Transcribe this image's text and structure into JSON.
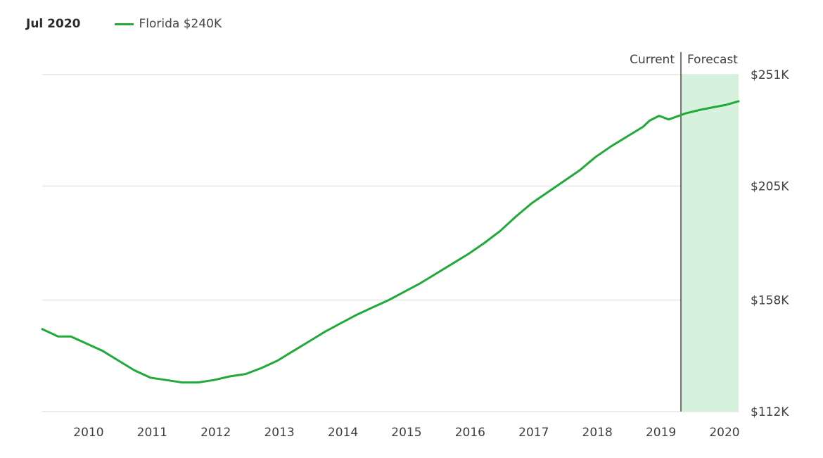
{
  "header": {
    "date_label": "Jul 2020",
    "legend": {
      "label": "Florida $240K",
      "color": "#22a93a"
    }
  },
  "markers": {
    "current_label": "Current",
    "forecast_label": "Forecast",
    "divider_text": "|"
  },
  "colors": {
    "line": "#22a93a",
    "forecast_band": "#d6f2dc",
    "gridline": "#ebebeb",
    "divider": "#4a4a4a"
  },
  "chart_data": {
    "type": "line",
    "title": "",
    "header_date": "Jul 2020",
    "legend": [
      "Florida $240K"
    ],
    "legend_position": "top-left",
    "xlabel": "",
    "ylabel": "",
    "x_ticks": [
      "2010",
      "2011",
      "2012",
      "2013",
      "2014",
      "2015",
      "2016",
      "2017",
      "2018",
      "2019",
      "2020"
    ],
    "y_ticks": [
      "$112K",
      "$158K",
      "$205K",
      "$251K"
    ],
    "y_tick_values": [
      112,
      158,
      205,
      251
    ],
    "ylim": [
      112,
      251
    ],
    "xlim": [
      2009.55,
      2020.5
    ],
    "grid": true,
    "y_axis_position": "right",
    "annotations": [
      {
        "text": "Current",
        "x": 2019.67
      },
      {
        "text": "Forecast",
        "x": 2019.67,
        "note": "shaded region from current to end of chart"
      }
    ],
    "forecast_start": 2019.67,
    "series": [
      {
        "name": "Florida",
        "color": "#22a93a",
        "x": [
          2009.55,
          2009.8,
          2010.0,
          2010.25,
          2010.5,
          2010.75,
          2011.0,
          2011.25,
          2011.5,
          2011.75,
          2012.0,
          2012.25,
          2012.5,
          2012.75,
          2013.0,
          2013.25,
          2013.5,
          2013.75,
          2014.0,
          2014.25,
          2014.5,
          2014.75,
          2015.0,
          2015.25,
          2015.5,
          2015.75,
          2016.0,
          2016.25,
          2016.5,
          2016.75,
          2017.0,
          2017.25,
          2017.5,
          2017.75,
          2018.0,
          2018.25,
          2018.5,
          2018.75,
          2019.0,
          2019.1,
          2019.25,
          2019.4,
          2019.67,
          2019.9,
          2020.1,
          2020.3,
          2020.5
        ],
        "values": [
          146,
          143,
          143,
          140,
          137,
          133,
          129,
          126,
          125,
          124,
          124,
          125,
          126.5,
          127.5,
          130,
          133,
          137,
          141,
          145,
          148.5,
          152,
          155,
          158,
          161.5,
          165,
          169,
          173,
          177,
          181.5,
          186.5,
          192.5,
          198,
          202.5,
          207,
          211.5,
          217,
          221.5,
          225.5,
          229.5,
          232,
          234,
          232.5,
          235,
          236.5,
          237.5,
          238.5,
          240
        ],
        "current_value": 240,
        "current_label": "Florida $240K"
      }
    ]
  }
}
